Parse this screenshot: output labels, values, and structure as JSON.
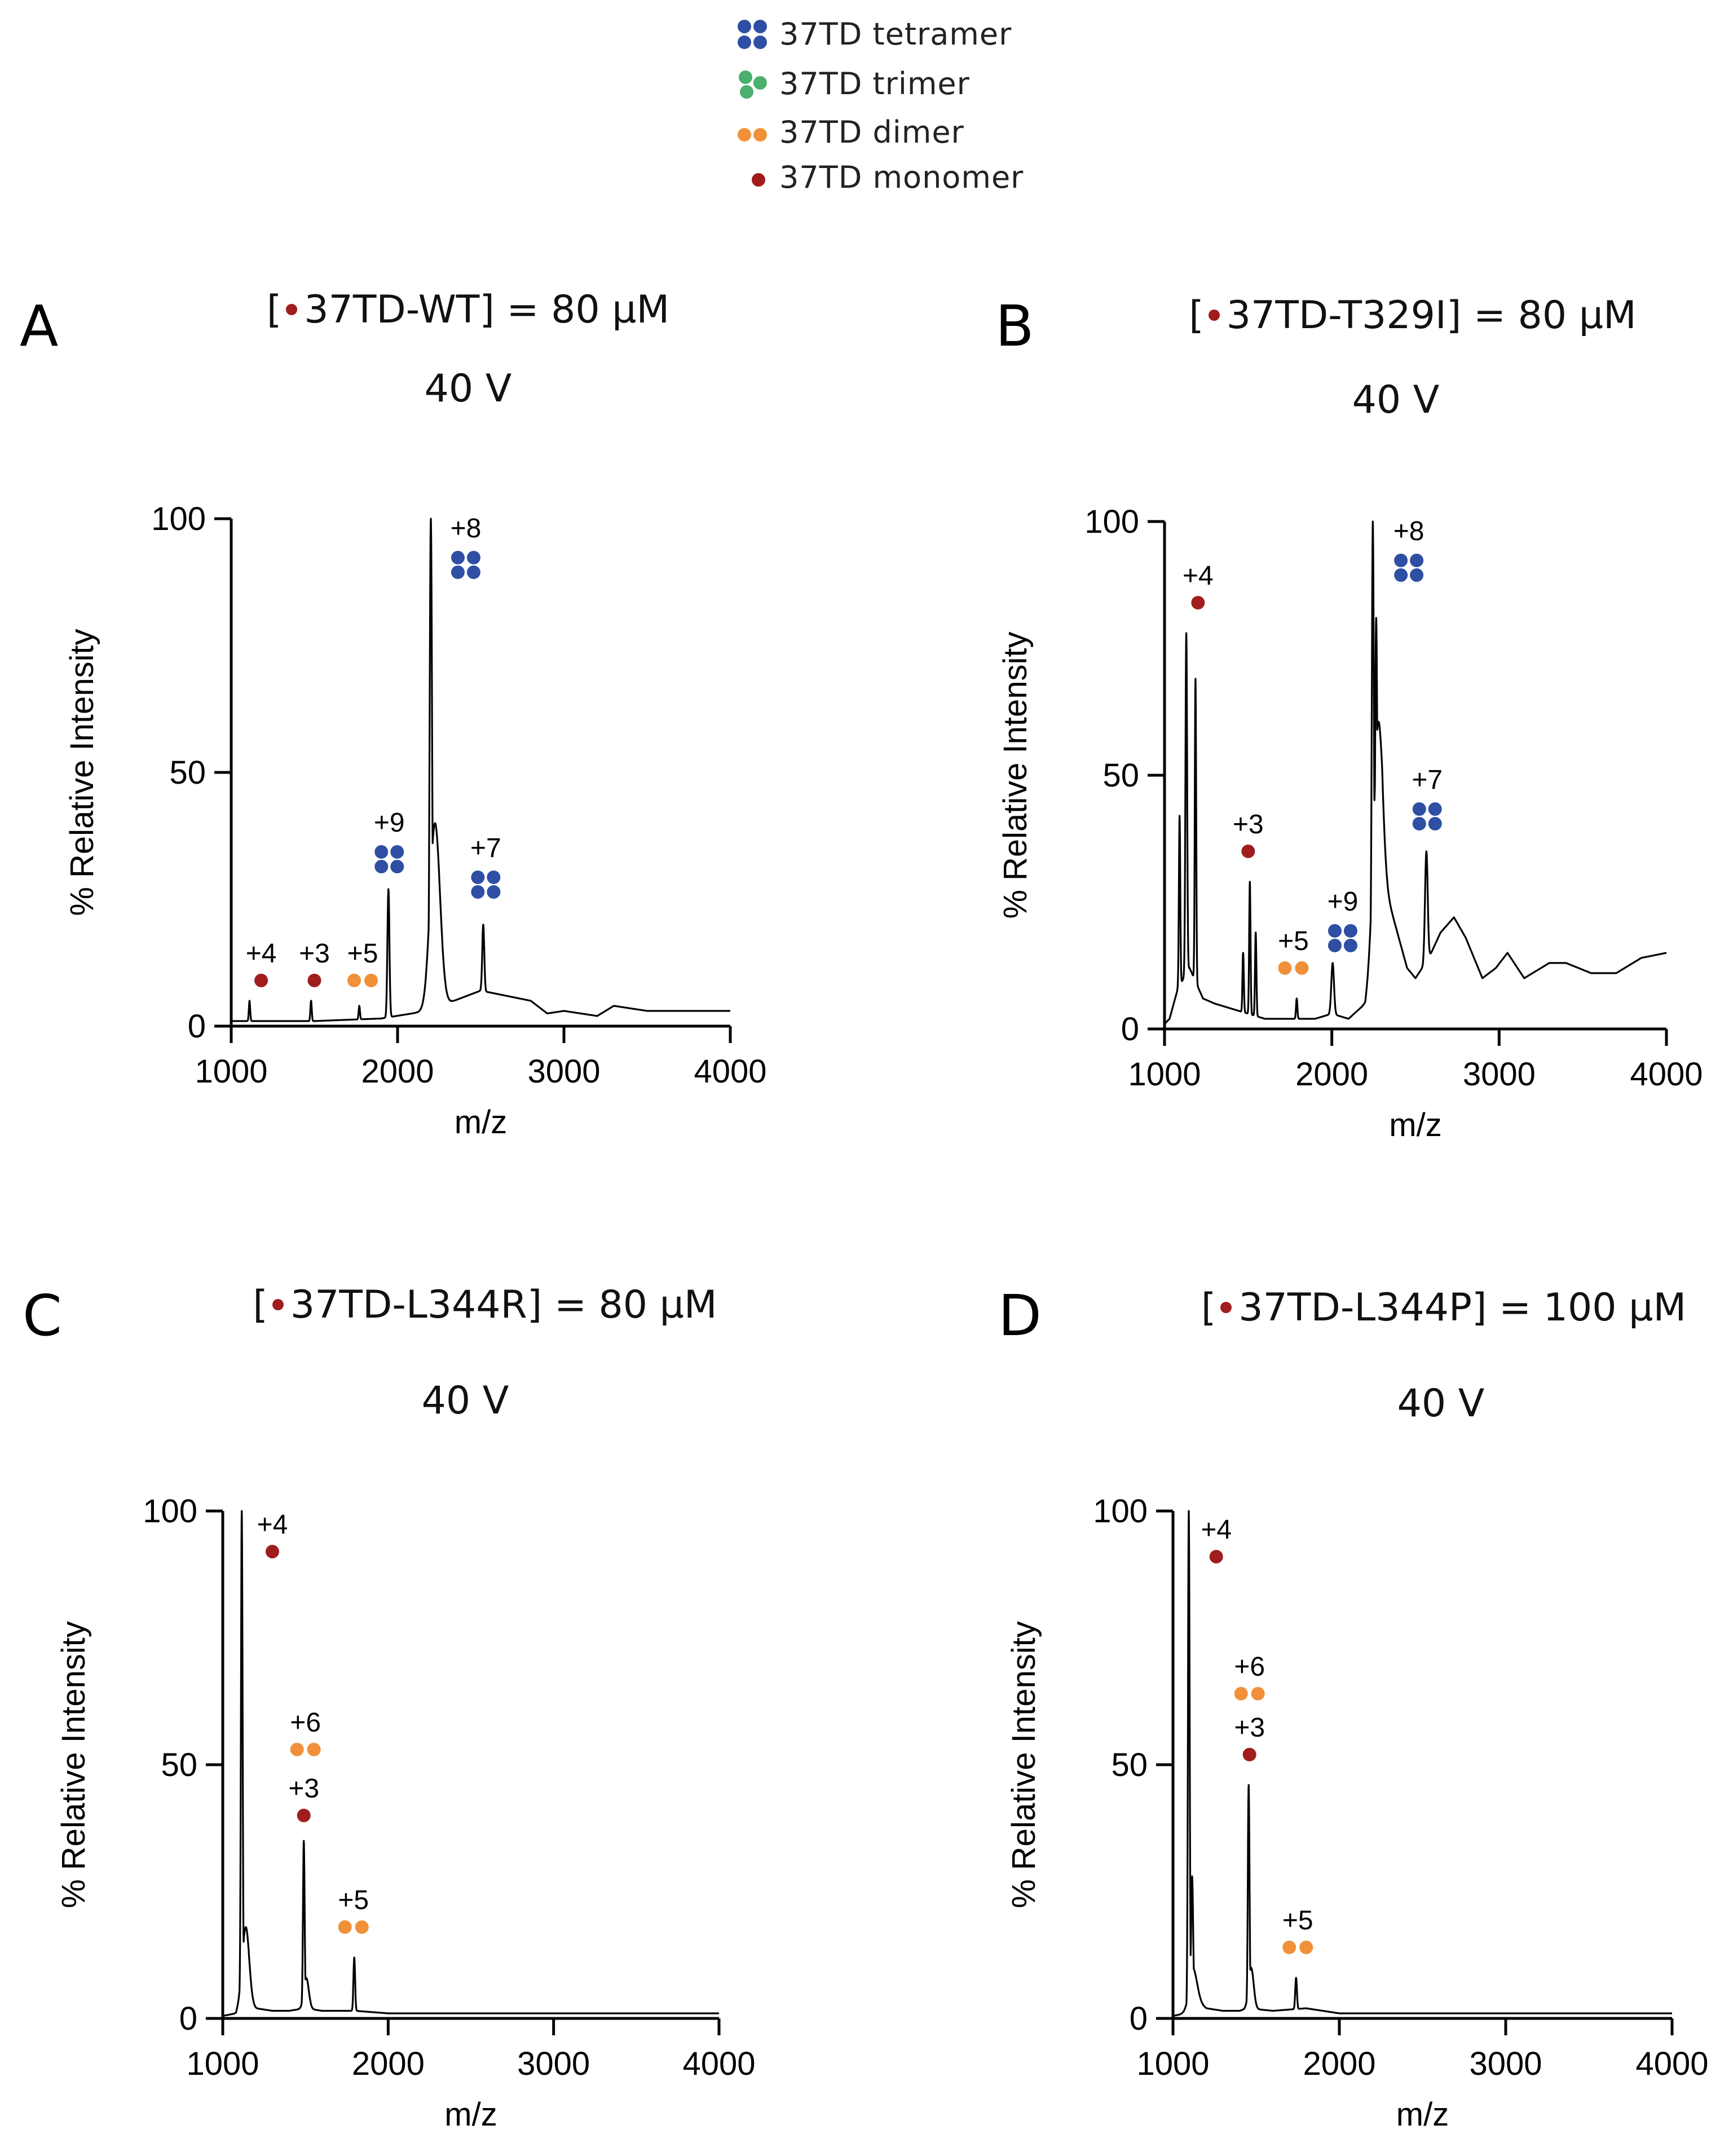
{
  "legend": {
    "items": [
      {
        "label": "37TD tetramer",
        "color": "#2e4fa3",
        "glyph": "tetramer-icon"
      },
      {
        "label": "37TD trimer",
        "color": "#4caf6e",
        "glyph": "trimer-icon"
      },
      {
        "label": "37TD dimer",
        "color": "#f0913a",
        "glyph": "dimer-icon"
      },
      {
        "label": "37TD monomer",
        "color": "#a01d1d",
        "glyph": "monomer-icon"
      }
    ]
  },
  "colors": {
    "tetramer": "#2e4fa3",
    "trimer": "#4caf6e",
    "dimer": "#f0913a",
    "monomer": "#a01d1d",
    "trace": "#000000"
  },
  "chart_data": [
    {
      "type": "line",
      "panel": "A",
      "title_prefix": "[",
      "title_text": "37TD-WT] = 80 µM",
      "voltage": "40 V",
      "xlabel": "m/z",
      "ylabel": "% Relative Intensity",
      "xlim": [
        1000,
        4000
      ],
      "ylim": [
        0,
        100
      ],
      "xticks": [
        "1000",
        "2000",
        "3000",
        "4000"
      ],
      "yticks": [
        "0",
        "50",
        "100"
      ],
      "baseline": [
        [
          1000,
          1
        ],
        [
          1500,
          1
        ],
        [
          1900,
          1.5
        ],
        [
          2180,
          3
        ],
        [
          2500,
          7
        ],
        [
          2800,
          5
        ],
        [
          2900,
          2.5
        ],
        [
          3000,
          3
        ],
        [
          3200,
          2
        ],
        [
          3300,
          4
        ],
        [
          3500,
          3
        ],
        [
          4000,
          3
        ]
      ],
      "peaks": [
        {
          "x": 1110,
          "y": 5,
          "w": 4
        },
        {
          "x": 1480,
          "y": 5,
          "w": 4
        },
        {
          "x": 1770,
          "y": 4,
          "w": 4
        },
        {
          "x": 1945,
          "y": 27,
          "w": 6
        },
        {
          "x": 2200,
          "y": 100,
          "w": 7
        },
        {
          "x": 2225,
          "y": 40,
          "w": 30
        },
        {
          "x": 2515,
          "y": 20,
          "w": 6
        }
      ],
      "annotations": [
        {
          "label": "+4",
          "species": "monomer",
          "x": 1180,
          "y": 9
        },
        {
          "label": "+3",
          "species": "monomer",
          "x": 1500,
          "y": 9
        },
        {
          "label": "+5",
          "species": "dimer",
          "x": 1790,
          "y": 9
        },
        {
          "label": "+9",
          "species": "tetramer",
          "x": 1950,
          "y": 33
        },
        {
          "label": "+8",
          "species": "tetramer",
          "x": 2410,
          "y": 91
        },
        {
          "label": "+7",
          "species": "tetramer",
          "x": 2530,
          "y": 28
        }
      ]
    },
    {
      "type": "line",
      "panel": "B",
      "title_prefix": "[",
      "title_text": "37TD-T329I] = 80 µM",
      "voltage": "40 V",
      "xlabel": "m/z",
      "ylabel": "% Relative Intensity",
      "xlim": [
        1000,
        4000
      ],
      "ylim": [
        0,
        100
      ],
      "xticks": [
        "1000",
        "2000",
        "3000",
        "4000"
      ],
      "yticks": [
        "0",
        "50",
        "100"
      ],
      "baseline": [
        [
          1000,
          1
        ],
        [
          1030,
          2
        ],
        [
          1080,
          8
        ],
        [
          1150,
          12
        ],
        [
          1230,
          6
        ],
        [
          1300,
          5
        ],
        [
          1400,
          4
        ],
        [
          1500,
          3
        ],
        [
          1600,
          2
        ],
        [
          1700,
          2
        ],
        [
          1800,
          2
        ],
        [
          1900,
          2
        ],
        [
          2000,
          3
        ],
        [
          2100,
          2
        ],
        [
          2200,
          5
        ],
        [
          2300,
          30
        ],
        [
          2350,
          24
        ],
        [
          2400,
          18
        ],
        [
          2450,
          12
        ],
        [
          2500,
          10
        ],
        [
          2580,
          14
        ],
        [
          2650,
          19
        ],
        [
          2730,
          22
        ],
        [
          2800,
          18
        ],
        [
          2900,
          10
        ],
        [
          2980,
          12
        ],
        [
          3050,
          15
        ],
        [
          3150,
          10
        ],
        [
          3300,
          13
        ],
        [
          3400,
          13
        ],
        [
          3550,
          11
        ],
        [
          3700,
          11
        ],
        [
          3850,
          14
        ],
        [
          4000,
          15
        ]
      ],
      "peaks": [
        {
          "x": 1090,
          "y": 42,
          "w": 4
        },
        {
          "x": 1130,
          "y": 78,
          "w": 5
        },
        {
          "x": 1185,
          "y": 69,
          "w": 4
        },
        {
          "x": 1470,
          "y": 15,
          "w": 4
        },
        {
          "x": 1510,
          "y": 29,
          "w": 4
        },
        {
          "x": 1545,
          "y": 19,
          "w": 4
        },
        {
          "x": 1790,
          "y": 6,
          "w": 4
        },
        {
          "x": 2005,
          "y": 13,
          "w": 8
        },
        {
          "x": 2245,
          "y": 100,
          "w": 6
        },
        {
          "x": 2265,
          "y": 81,
          "w": 6
        },
        {
          "x": 2275,
          "y": 60,
          "w": 25
        },
        {
          "x": 2565,
          "y": 35,
          "w": 8
        }
      ],
      "annotations": [
        {
          "label": "+4",
          "species": "monomer",
          "x": 1200,
          "y": 84
        },
        {
          "label": "+3",
          "species": "monomer",
          "x": 1500,
          "y": 35
        },
        {
          "label": "+5",
          "species": "dimer",
          "x": 1770,
          "y": 12
        },
        {
          "label": "+9",
          "species": "tetramer",
          "x": 2065,
          "y": 18
        },
        {
          "label": "+8",
          "species": "tetramer",
          "x": 2460,
          "y": 91
        },
        {
          "label": "+7",
          "species": "tetramer",
          "x": 2570,
          "y": 42
        }
      ]
    },
    {
      "type": "line",
      "panel": "C",
      "title_prefix": "[",
      "title_text": "37TD-L344R] = 80 µM",
      "voltage": "40 V",
      "xlabel": "m/z",
      "ylabel": "% Relative Intensity",
      "xlim": [
        1000,
        4000
      ],
      "ylim": [
        0,
        100
      ],
      "xticks": [
        "1000",
        "2000",
        "3000",
        "4000"
      ],
      "yticks": [
        "0",
        "50",
        "100"
      ],
      "baseline": [
        [
          1000,
          0.5
        ],
        [
          1080,
          1
        ],
        [
          1110,
          4
        ],
        [
          1200,
          2
        ],
        [
          1300,
          1.5
        ],
        [
          1400,
          1.5
        ],
        [
          1500,
          2
        ],
        [
          1600,
          1.5
        ],
        [
          1800,
          1.5
        ],
        [
          2000,
          1
        ],
        [
          3000,
          1
        ],
        [
          4000,
          1
        ]
      ],
      "peaks": [
        {
          "x": 1115,
          "y": 100,
          "w": 5
        },
        {
          "x": 1140,
          "y": 18,
          "w": 20
        },
        {
          "x": 1490,
          "y": 35,
          "w": 5
        },
        {
          "x": 1505,
          "y": 8,
          "w": 15
        },
        {
          "x": 1795,
          "y": 12,
          "w": 5
        }
      ],
      "annotations": [
        {
          "label": "+4",
          "species": "monomer",
          "x": 1300,
          "y": 92
        },
        {
          "label": "+6",
          "species": "dimer",
          "x": 1500,
          "y": 53
        },
        {
          "label": "+3",
          "species": "monomer",
          "x": 1490,
          "y": 40
        },
        {
          "label": "+5",
          "species": "dimer",
          "x": 1790,
          "y": 18
        }
      ]
    },
    {
      "type": "line",
      "panel": "D",
      "title_prefix": "[",
      "title_text": "37TD-L344P] = 100 µM",
      "voltage": "40 V",
      "xlabel": "m/z",
      "ylabel": "% Relative Intensity",
      "xlim": [
        1000,
        4000
      ],
      "ylim": [
        0,
        100
      ],
      "xticks": [
        "1000",
        "2000",
        "3000",
        "4000"
      ],
      "yticks": [
        "0",
        "50",
        "100"
      ],
      "baseline": [
        [
          1000,
          0.5
        ],
        [
          1080,
          1
        ],
        [
          1100,
          4
        ],
        [
          1200,
          2
        ],
        [
          1300,
          1.5
        ],
        [
          1400,
          1.5
        ],
        [
          1450,
          2
        ],
        [
          1600,
          1.5
        ],
        [
          1800,
          2
        ],
        [
          2000,
          1
        ],
        [
          3000,
          1
        ],
        [
          4000,
          1
        ]
      ],
      "peaks": [
        {
          "x": 1095,
          "y": 100,
          "w": 5
        },
        {
          "x": 1115,
          "y": 28,
          "w": 6
        },
        {
          "x": 1120,
          "y": 10,
          "w": 25
        },
        {
          "x": 1455,
          "y": 46,
          "w": 5
        },
        {
          "x": 1470,
          "y": 10,
          "w": 15
        },
        {
          "x": 1740,
          "y": 8,
          "w": 5
        }
      ],
      "annotations": [
        {
          "label": "+4",
          "species": "monomer",
          "x": 1260,
          "y": 91
        },
        {
          "label": "+6",
          "species": "dimer",
          "x": 1460,
          "y": 64
        },
        {
          "label": "+3",
          "species": "monomer",
          "x": 1460,
          "y": 52
        },
        {
          "label": "+5",
          "species": "dimer",
          "x": 1750,
          "y": 14
        }
      ]
    }
  ]
}
